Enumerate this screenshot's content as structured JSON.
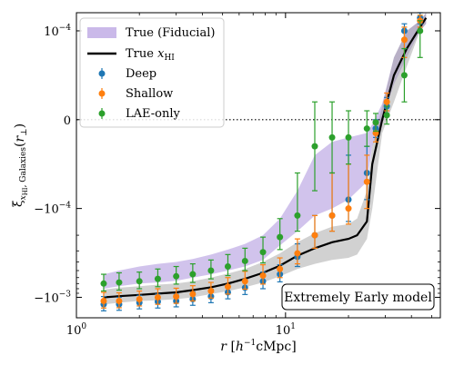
{
  "chart_data": {
    "type": "line",
    "xlabel": "r [h⁻¹cMpc]",
    "ylabel": "ξ x_HI, Galaxies(r⊥)",
    "xscale": "log",
    "yscale": "symlog",
    "xlim": [
      1,
      55
    ],
    "ylim": [
      -0.0017,
      0.00016
    ],
    "x_ticks": [
      {
        "value": 1,
        "label": "10^0"
      },
      {
        "value": 10,
        "label": "10^1"
      }
    ],
    "y_ticks": [
      {
        "value": 0.0001,
        "label": "10^-4"
      },
      {
        "value": 0,
        "label": "0"
      },
      {
        "value": -0.0001,
        "label": "-10^-4"
      },
      {
        "value": -0.001,
        "label": "-10^-3"
      }
    ],
    "zero_line": "dotted",
    "legend_position": "top-left",
    "annotation": "Extremely Early model",
    "colors": {
      "fiducial_band": "#b39be0",
      "true_line": "#000000",
      "true_band": "#999999",
      "deep": "#1f77b4",
      "shallow": "#ff7f0e",
      "lae": "#2ca02c"
    },
    "fiducial_band": {
      "name": "True (Fiducial)",
      "x": [
        1.35,
        1.6,
        2.0,
        2.45,
        3.0,
        3.6,
        4.4,
        5.3,
        6.4,
        7.8,
        9.4,
        11.4,
        13.8,
        16.7,
        20.0,
        24.5,
        26.0,
        29.0,
        33.0,
        38.0,
        44.0,
        47.0
      ],
      "upper": [
        -0.00055,
        -0.0005,
        -0.00045,
        -0.00042,
        -0.0004,
        -0.00037,
        -0.00033,
        -0.00029,
        -0.00025,
        -0.0002,
        -0.00013,
        -8e-05,
        -4e-05,
        -2.5e-05,
        -2e-05,
        -1.5e-05,
        -5e-06,
        1.8e-05,
        7e-05,
        0.0001,
        0.00013,
        0.00016
      ],
      "lower": [
        -0.0008,
        -0.00075,
        -0.0007,
        -0.00068,
        -0.00065,
        -0.0006,
        -0.00055,
        -0.0005,
        -0.00045,
        -0.00038,
        -0.00026,
        -0.00018,
        -0.00012,
        -0.0001,
        -9e-05,
        -7e-05,
        -3e-05,
        0.0,
        4e-05,
        7e-05,
        0.0001,
        0.00012
      ]
    },
    "true_band": {
      "x": [
        1.35,
        1.6,
        2.0,
        2.45,
        3.0,
        3.6,
        4.4,
        5.3,
        6.4,
        7.8,
        9.4,
        11.4,
        13.8,
        16.7,
        20.0,
        22.0,
        24.5,
        26.0,
        29.0,
        33.0,
        38.0,
        44.0,
        47.0
      ],
      "upper": [
        -0.00082,
        -0.00078,
        -0.00075,
        -0.00072,
        -0.0007,
        -0.00066,
        -0.0006,
        -0.00054,
        -0.00048,
        -0.0004,
        -0.00032,
        -0.00024,
        -0.00019,
        -0.00016,
        -0.00015,
        -0.00013,
        -8e-05,
        -3e-05,
        1.5e-05,
        7e-05,
        0.0001,
        0.00013,
        0.00016
      ],
      "lower": [
        -0.0012,
        -0.00115,
        -0.0011,
        -0.00108,
        -0.00105,
        -0.001,
        -0.00092,
        -0.00085,
        -0.00077,
        -0.00068,
        -0.00058,
        -0.00048,
        -0.00042,
        -0.00038,
        -0.00036,
        -0.00033,
        -0.00022,
        -0.0001,
        -1.5e-05,
        2e-05,
        6e-05,
        0.0001,
        0.00012
      ]
    },
    "true_line": {
      "name": "True x_HI",
      "x": [
        1.35,
        1.6,
        2.0,
        2.45,
        3.0,
        3.6,
        4.4,
        5.3,
        6.4,
        7.8,
        9.4,
        11.4,
        13.8,
        16.7,
        20.0,
        22.0,
        24.5,
        26.0,
        29.0,
        33.0,
        38.0,
        44.0,
        47.0
      ],
      "y": [
        -0.001,
        -0.00097,
        -0.00094,
        -0.00091,
        -0.00088,
        -0.00083,
        -0.00077,
        -0.0007,
        -0.00062,
        -0.00053,
        -0.00044,
        -0.00034,
        -0.00028,
        -0.00024,
        -0.00022,
        -0.0002,
        -0.00014,
        -5e-05,
        0.0,
        5e-05,
        8e-05,
        0.00011,
        0.00014
      ]
    },
    "series": [
      {
        "name": "Deep",
        "x": [
          1.35,
          1.6,
          2.0,
          2.45,
          3.0,
          3.6,
          4.4,
          5.3,
          6.4,
          7.8,
          9.4,
          11.4,
          13.8,
          16.7,
          20.0,
          24.5,
          27.0,
          30.5,
          37.0,
          44.0
        ],
        "y": [
          -0.0012,
          -0.0012,
          -0.00115,
          -0.00112,
          -0.0011,
          -0.00105,
          -0.00098,
          -0.00088,
          -0.00078,
          -0.00066,
          -0.00055,
          -0.00035,
          -0.0002,
          -0.00012,
          -9e-05,
          -6e-05,
          -1e-05,
          1.5e-05,
          0.0001,
          0.00014
        ],
        "yerr": [
          0.00022,
          0.0002,
          0.0002,
          0.0002,
          0.00018,
          0.00018,
          0.00017,
          0.00016,
          0.00015,
          0.00014,
          0.00012,
          0.0001,
          8e-05,
          6e-05,
          5e-05,
          3e-05,
          1e-05,
          1e-05,
          2e-05,
          2e-05
        ]
      },
      {
        "name": "Shallow",
        "x": [
          1.35,
          1.6,
          2.0,
          2.45,
          3.0,
          3.6,
          4.4,
          5.3,
          6.4,
          7.8,
          9.4,
          11.4,
          13.8,
          16.7,
          20.0,
          24.5,
          27.0,
          30.5,
          37.0,
          44.0
        ],
        "y": [
          -0.0011,
          -0.0011,
          -0.00105,
          -0.001,
          -0.00098,
          -0.00092,
          -0.00085,
          -0.00076,
          -0.00066,
          -0.00057,
          -0.00048,
          -0.00032,
          -0.0002,
          -0.00012,
          -0.0001,
          -7e-05,
          -1.5e-05,
          2e-05,
          9e-05,
          0.00013
        ],
        "yerr": [
          0.00022,
          0.00021,
          0.0002,
          0.0002,
          0.00019,
          0.00018,
          0.00017,
          0.00016,
          0.00015,
          0.00014,
          0.00012,
          0.0001,
          8e-05,
          6e-05,
          5e-05,
          3e-05,
          1e-05,
          1e-05,
          2e-05,
          2e-05
        ]
      },
      {
        "name": "LAE-only",
        "x": [
          1.35,
          1.6,
          2.0,
          2.45,
          3.0,
          3.6,
          4.4,
          5.3,
          6.4,
          7.8,
          9.4,
          11.4,
          13.8,
          16.7,
          20.0,
          24.5,
          27.0,
          30.5,
          37.0,
          44.0
        ],
        "y": [
          -0.0007,
          -0.00068,
          -0.00066,
          -0.00062,
          -0.00058,
          -0.00055,
          -0.0005,
          -0.00045,
          -0.00039,
          -0.00031,
          -0.00021,
          -0.00012,
          -3e-05,
          -2e-05,
          -2e-05,
          -1e-05,
          -3e-06,
          5e-06,
          5e-05,
          0.0001
        ],
        "yerr": [
          0.00015,
          0.00015,
          0.00014,
          0.00014,
          0.00013,
          0.00013,
          0.00012,
          0.00012,
          0.00011,
          0.0001,
          8e-05,
          6e-05,
          5e-05,
          4e-05,
          3e-05,
          2e-05,
          1e-05,
          1e-05,
          3e-05,
          3e-05
        ]
      }
    ]
  }
}
